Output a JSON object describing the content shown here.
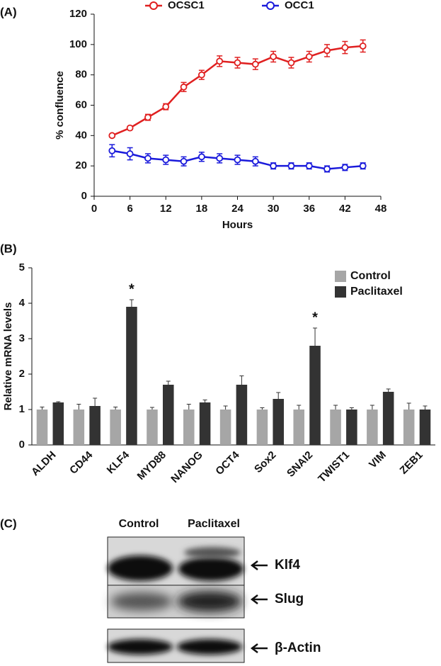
{
  "chart_data": [
    {
      "type": "line",
      "panel_label": "(A)",
      "xlabel": "Hours",
      "ylabel": "% confluence",
      "x": [
        3,
        6,
        9,
        12,
        15,
        18,
        21,
        24,
        27,
        30,
        33,
        36,
        39,
        42,
        45
      ],
      "series": [
        {
          "name": "OCSC1",
          "color": "#e02020",
          "values": [
            40,
            45,
            52,
            59,
            72,
            80,
            89,
            88,
            87,
            92,
            88,
            92,
            96,
            98,
            99
          ],
          "errors": [
            1,
            1,
            2,
            2,
            3,
            3,
            3.5,
            3.5,
            3.5,
            3.5,
            3.5,
            3.5,
            4,
            4,
            4
          ]
        },
        {
          "name": "OCC1",
          "color": "#1a1adb",
          "values": [
            30,
            28,
            25,
            24,
            23,
            26,
            25,
            24,
            23,
            20,
            20,
            20,
            18,
            19,
            20
          ],
          "errors": [
            4,
            4,
            3,
            3,
            3,
            3,
            3,
            3,
            3,
            2,
            2,
            2,
            2,
            2,
            2
          ]
        }
      ],
      "xlim": [
        0,
        48
      ],
      "xticks": [
        0,
        6,
        12,
        18,
        24,
        30,
        36,
        42,
        48
      ],
      "ylim": [
        0,
        120
      ],
      "yticks": [
        0,
        20,
        40,
        60,
        80,
        100,
        120
      ],
      "legend": "top"
    },
    {
      "type": "bar",
      "panel_label": "(B)",
      "ylabel": "Relative mRNA levels",
      "categories": [
        "ALDH",
        "CD44",
        "KLF4",
        "MYD88",
        "NANOG",
        "OCT4",
        "Sox2",
        "SNAI2",
        "TWIST1",
        "VIM",
        "ZEB1"
      ],
      "series": [
        {
          "name": "Control",
          "color": "#a6a6a6",
          "values": [
            1,
            1,
            1,
            1,
            1,
            1,
            1,
            1,
            1,
            1,
            1
          ],
          "errors": [
            0.07,
            0.15,
            0.07,
            0.06,
            0.15,
            0.1,
            0.05,
            0.12,
            0.12,
            0.12,
            0.18
          ]
        },
        {
          "name": "Paclitaxel",
          "color": "#333333",
          "values": [
            1.2,
            1.1,
            3.9,
            1.7,
            1.2,
            1.7,
            1.3,
            2.8,
            1.0,
            1.5,
            1.0
          ],
          "errors": [
            0.02,
            0.22,
            0.2,
            0.1,
            0.07,
            0.25,
            0.18,
            0.5,
            0.05,
            0.08,
            0.1
          ]
        }
      ],
      "annotations": [
        {
          "text": "*",
          "category": "KLF4"
        },
        {
          "text": "*",
          "category": "SNAI2"
        }
      ],
      "ylim": [
        0,
        5
      ],
      "yticks": [
        0,
        1,
        2,
        3,
        4,
        5
      ],
      "legend": "top-right"
    }
  ],
  "blot": {
    "panel_label": "(C)",
    "lanes": [
      "Control",
      "Paclitaxel"
    ],
    "bands": [
      "Klf4",
      "Slug",
      "β-Actin"
    ]
  }
}
